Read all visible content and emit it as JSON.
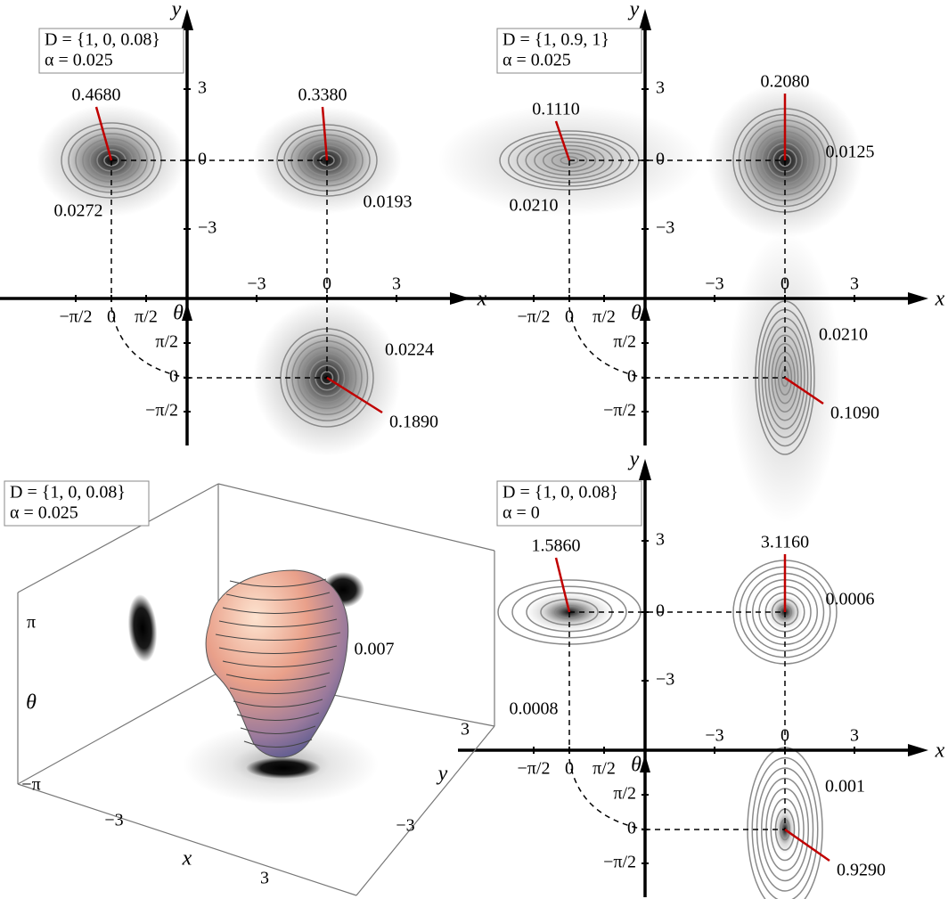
{
  "panels": [
    {
      "legend": [
        "D = {1, 0, 0.08}",
        "α = 0.025"
      ],
      "axes": {
        "x": "x",
        "y": "y",
        "theta": "θ"
      },
      "x_ticks": [
        "−3",
        "0",
        "3"
      ],
      "y_ticks": [
        "3",
        "0",
        "−3"
      ],
      "theta_ticks": [
        "−π/2",
        "0",
        "π/2"
      ],
      "xy_left": {
        "peak": "0.4680",
        "level": "0.0272"
      },
      "xy_right": {
        "peak": "0.3380",
        "level": "0.0193"
      },
      "x_theta": {
        "peak": "0.1890",
        "level": "0.0224"
      }
    },
    {
      "legend": [
        "D = {1, 0.9, 1}",
        "α = 0.025"
      ],
      "axes": {
        "x": "x",
        "y": "y",
        "theta": "θ"
      },
      "x_ticks": [
        "−3",
        "0",
        "3"
      ],
      "y_ticks": [
        "3",
        "0",
        "−3"
      ],
      "theta_ticks": [
        "−π/2",
        "0",
        "π/2"
      ],
      "xy_left": {
        "peak": "0.1110",
        "level": "0.0210"
      },
      "xy_right": {
        "peak": "0.2080",
        "level": "0.0125"
      },
      "x_theta": {
        "peak": "0.1090",
        "level": "0.0210"
      }
    },
    {
      "legend": [
        "D = {1, 0, 0.08}",
        "α = 0.025"
      ],
      "axes": {
        "x": "x",
        "y": "y",
        "theta": "θ"
      },
      "theta_ticks": [
        "−π",
        "π"
      ],
      "x_ticks": [
        "−3",
        "3"
      ],
      "y_ticks": [
        "−3",
        "3"
      ],
      "level": "0.007"
    },
    {
      "legend": [
        "D = {1, 0, 0.08}",
        "α = 0"
      ],
      "axes": {
        "x": "x",
        "y": "y",
        "theta": "θ"
      },
      "x_ticks": [
        "−3",
        "0",
        "3"
      ],
      "y_ticks": [
        "3",
        "0",
        "−3"
      ],
      "theta_ticks": [
        "−π/2",
        "0",
        "π/2"
      ],
      "xy_left": {
        "peak": "1.5860",
        "level": "0.0008"
      },
      "xy_right": {
        "peak": "3.1160",
        "level": "0.0006"
      },
      "x_theta": {
        "peak": "0.9290",
        "level": "0.001"
      }
    }
  ]
}
